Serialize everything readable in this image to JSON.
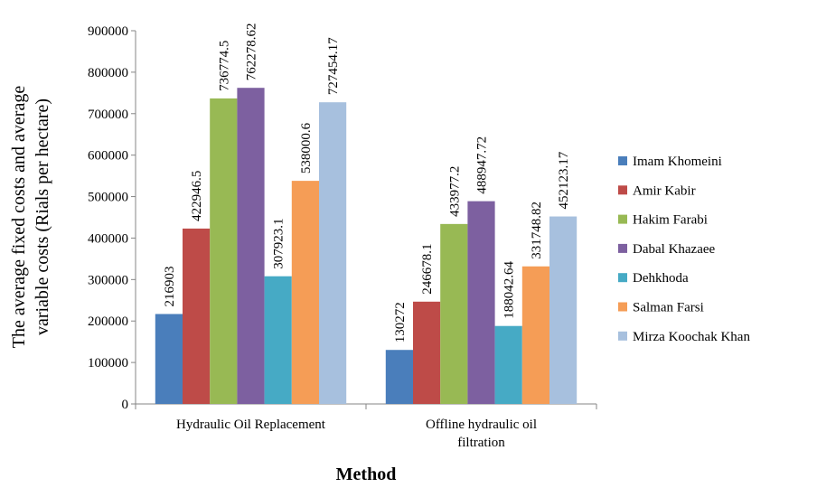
{
  "chart_data": {
    "type": "bar",
    "categories": [
      [
        "Hydraulic Oil Replacement"
      ],
      [
        "Offline hydraulic oil",
        "filtration"
      ]
    ],
    "series": [
      {
        "name": "Imam Khomeini",
        "color": "#4a7ebb",
        "values": [
          216903,
          130272
        ],
        "labels": [
          "216903",
          "130272"
        ]
      },
      {
        "name": "Amir Kabir",
        "color": "#be4b48",
        "values": [
          422946.5,
          246678.1
        ],
        "labels": [
          "422946.5",
          "246678.1"
        ]
      },
      {
        "name": "Hakim Farabi",
        "color": "#98b954",
        "values": [
          736774.5,
          433977.2
        ],
        "labels": [
          "736774.5",
          "433977.2"
        ]
      },
      {
        "name": "Dabal Khazaee",
        "color": "#7d60a0",
        "values": [
          762278.62,
          488947.72
        ],
        "labels": [
          "762278.62",
          "488947.72"
        ]
      },
      {
        "name": "Dehkhoda",
        "color": "#46aac5",
        "values": [
          307923.1,
          188042.64
        ],
        "labels": [
          "307923.1",
          "188042.64"
        ]
      },
      {
        "name": "Salman Farsi",
        "color": "#f59d56",
        "values": [
          538000.6,
          331748.82
        ],
        "labels": [
          "538000.6",
          "331748.82"
        ]
      },
      {
        "name": "Mirza Koochak Khan",
        "color": "#a7c0de",
        "values": [
          727454.17,
          452123.17
        ],
        "labels": [
          "727454.17",
          "452123.17"
        ]
      }
    ],
    "yticks": [
      "0",
      "100000",
      "200000",
      "300000",
      "400000",
      "500000",
      "600000",
      "700000",
      "800000",
      "900000"
    ],
    "ylim": [
      0,
      900000
    ],
    "ylabel": [
      "The average fixed costs and average",
      "variable costs (Rials per hectare)"
    ],
    "xlabel": "Method",
    "legend_position": "right",
    "grid": false
  }
}
